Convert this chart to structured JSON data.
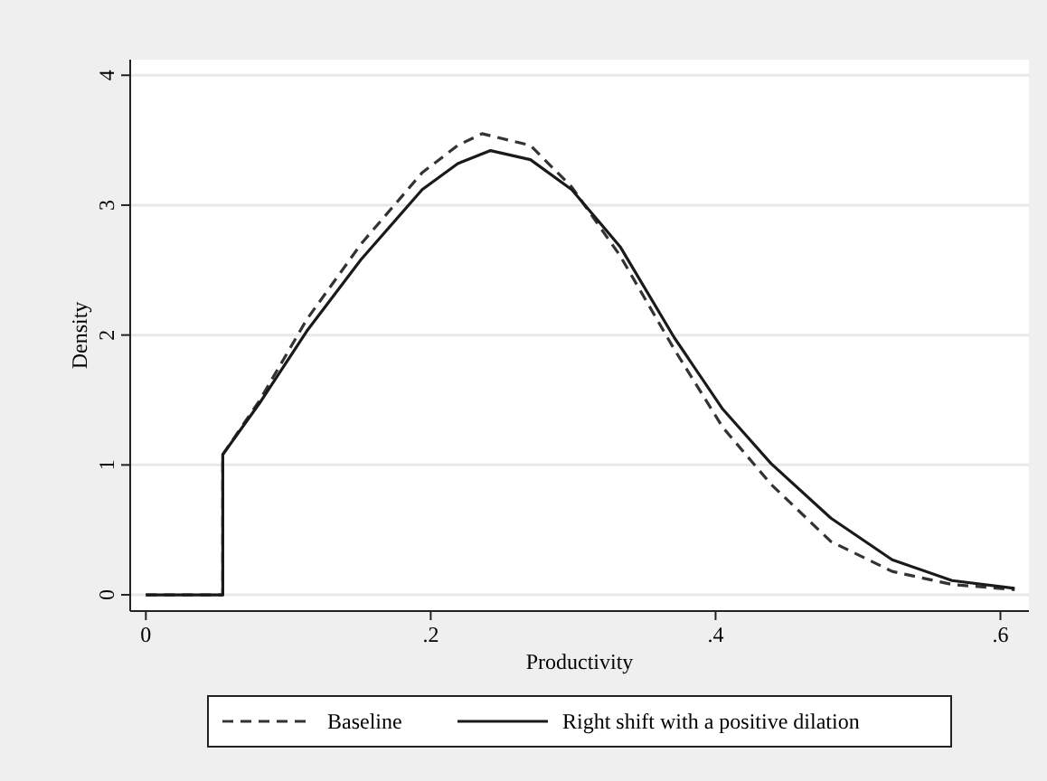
{
  "chart_data": {
    "type": "line",
    "xlabel": "Productivity",
    "ylabel": "Density",
    "xlim": [
      -0.011,
      0.62
    ],
    "ylim": [
      -0.125,
      4.12
    ],
    "xticks": [
      0,
      {
        "value": 0.2,
        "label": ".2"
      },
      {
        "value": 0.4,
        "label": ".4"
      },
      {
        "value": 0.6,
        "label": ".6"
      }
    ],
    "yticks": [
      0,
      1,
      2,
      3,
      4
    ],
    "grid": "y",
    "legend": "bottom",
    "series": [
      {
        "name": "Baseline",
        "color": "#333333",
        "line_style": "dashed",
        "x": [
          0,
          0.054,
          0.054,
          0.0795,
          0.113,
          0.151,
          0.194,
          0.219,
          0.236,
          0.27,
          0.299,
          0.333,
          0.371,
          0.405,
          0.439,
          0.481,
          0.524,
          0.566,
          0.61
        ],
        "values": [
          0,
          0,
          1.08,
          1.49,
          2.12,
          2.7,
          3.25,
          3.46,
          3.55,
          3.46,
          3.14,
          2.61,
          1.89,
          1.29,
          0.85,
          0.41,
          0.18,
          0.08,
          0.04
        ]
      },
      {
        "name": "Right shift with a positive dilation",
        "color": "#1a1a1a",
        "line_style": "solid",
        "x": [
          0,
          0.054,
          0.054,
          0.0795,
          0.113,
          0.151,
          0.194,
          0.219,
          0.242,
          0.27,
          0.299,
          0.333,
          0.371,
          0.405,
          0.439,
          0.481,
          0.524,
          0.566,
          0.61
        ],
        "values": [
          0,
          0,
          1.08,
          1.47,
          2.03,
          2.58,
          3.12,
          3.32,
          3.42,
          3.35,
          3.12,
          2.68,
          1.98,
          1.43,
          1.01,
          0.59,
          0.27,
          0.11,
          0.05
        ]
      }
    ]
  }
}
